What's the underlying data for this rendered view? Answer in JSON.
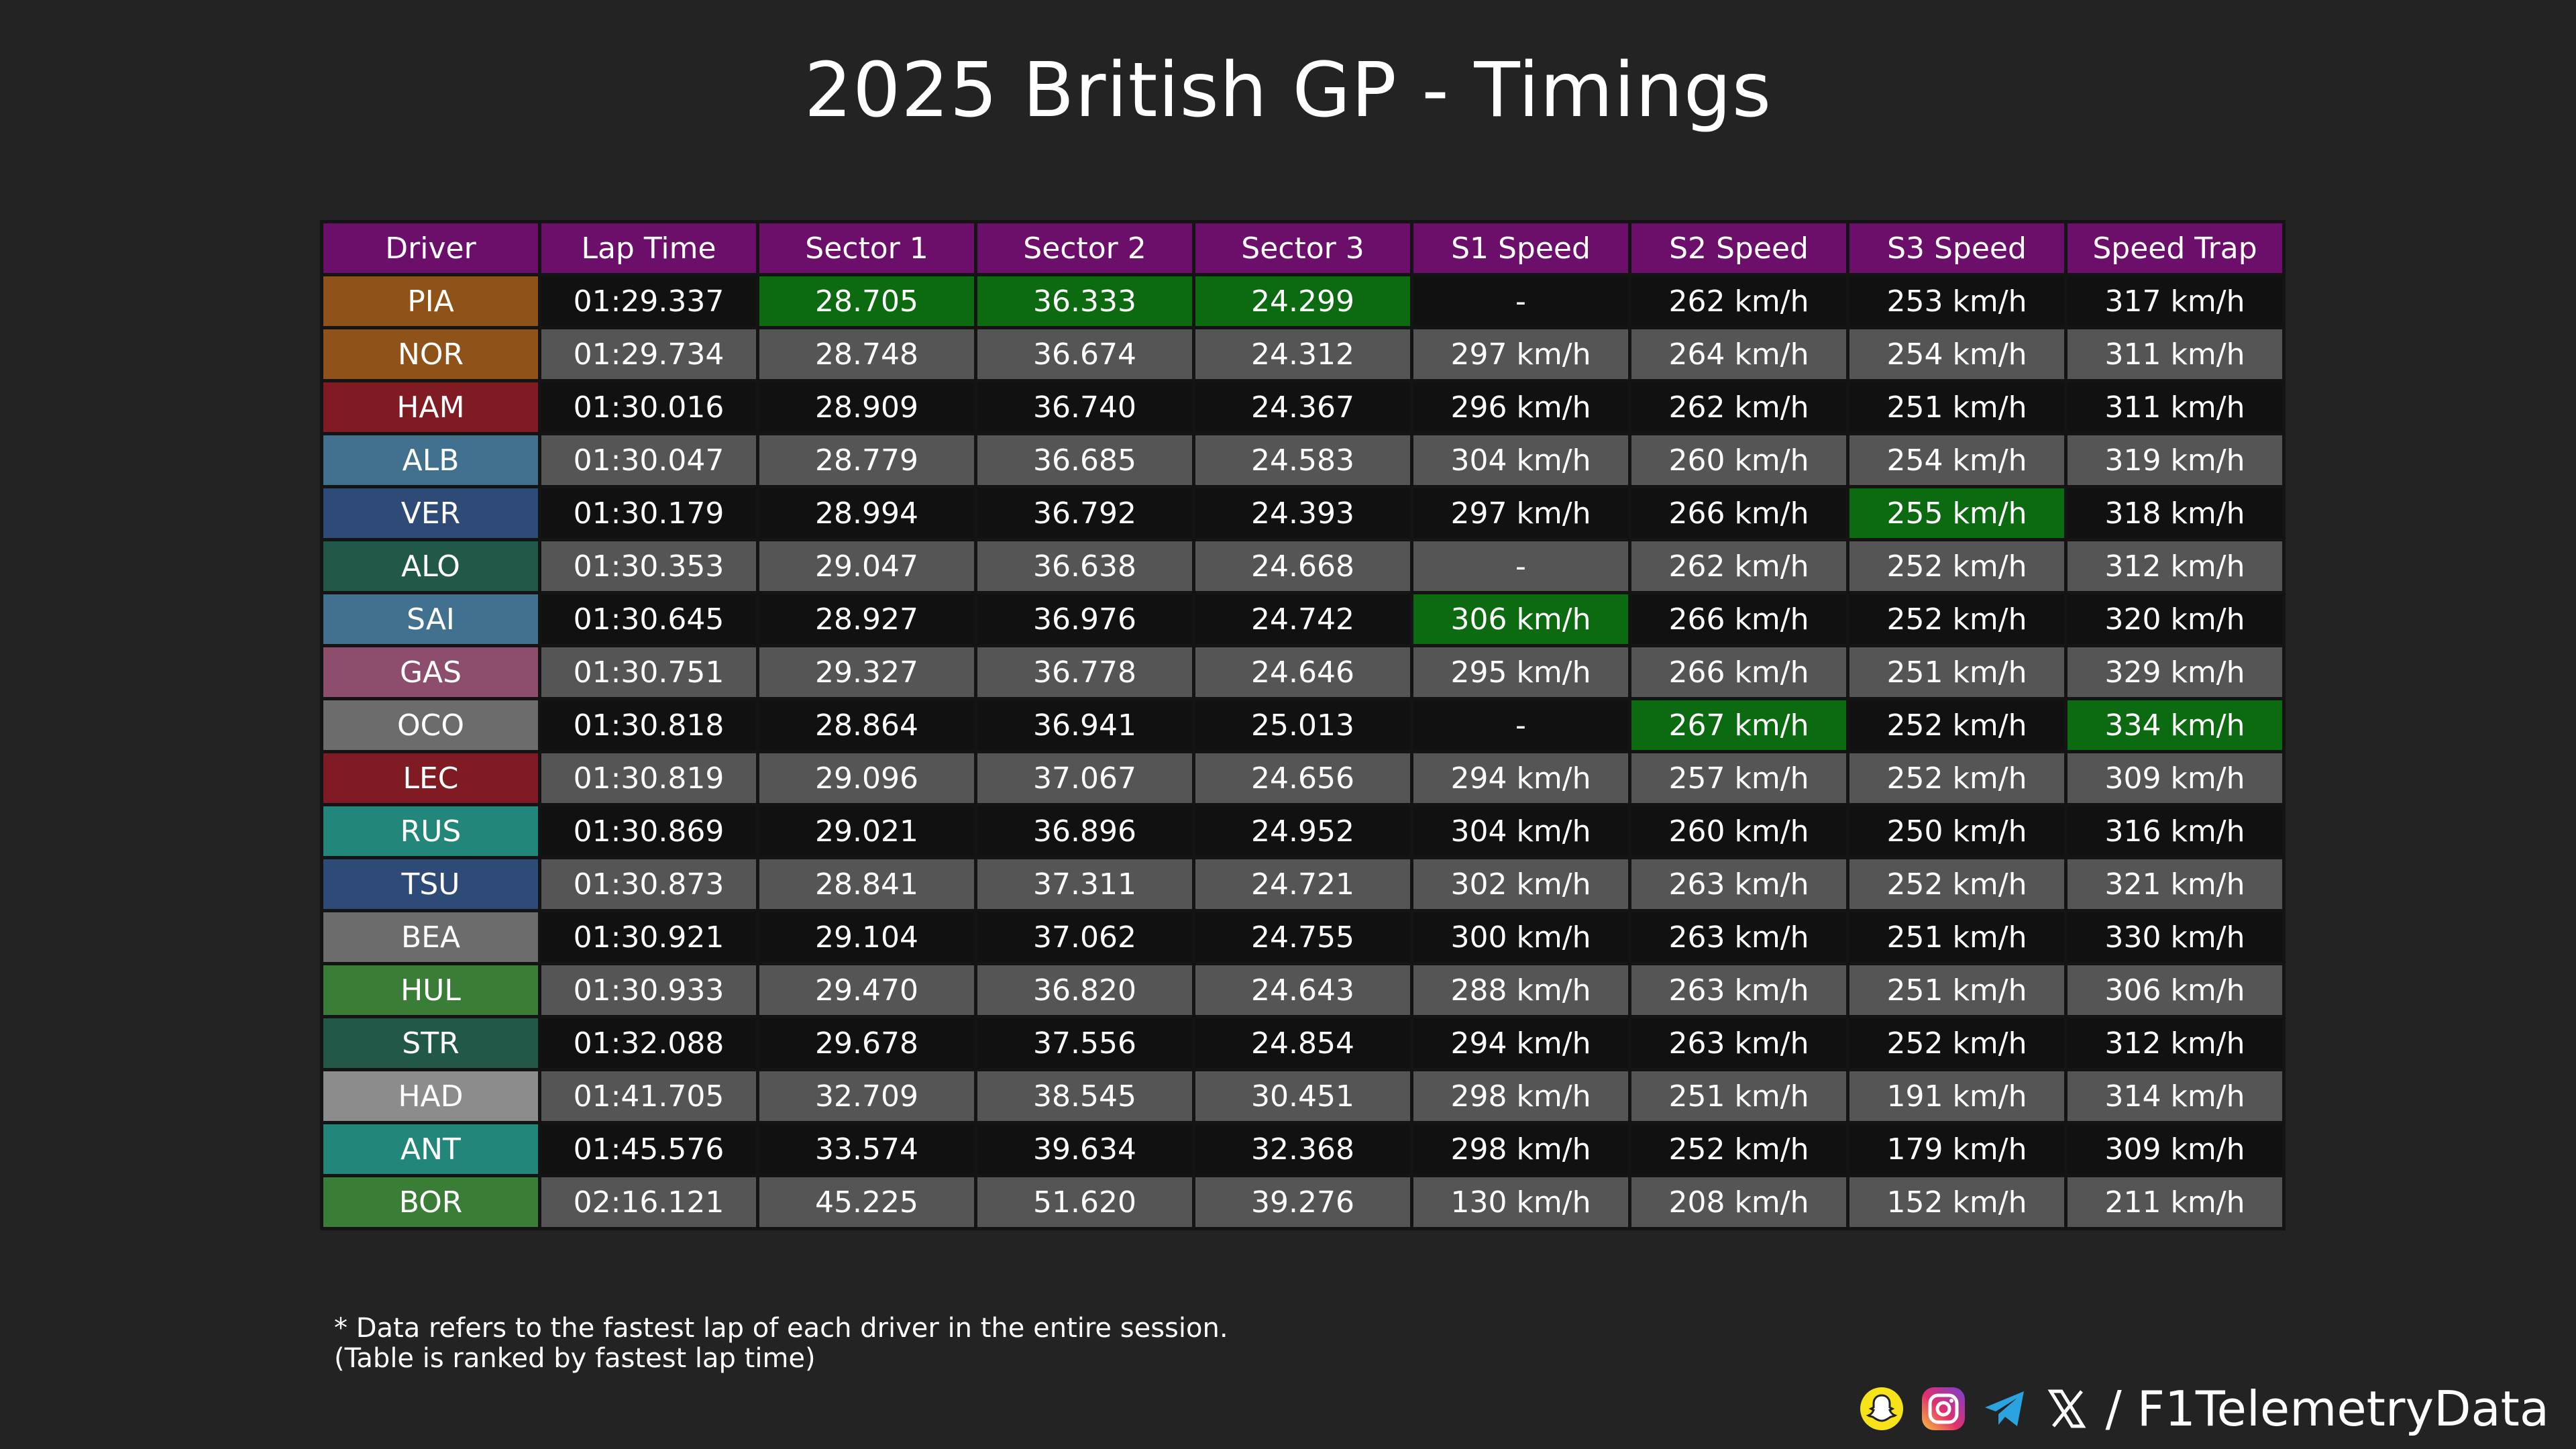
{
  "title": "2025 British GP - Timings",
  "watermark": "@F1TelemetryData",
  "columns": [
    "Driver",
    "Lap Time",
    "Sector 1",
    "Sector 2",
    "Sector 3",
    "S1 Speed",
    "S2 Speed",
    "S3 Speed",
    "Speed Trap"
  ],
  "colors": {
    "header": "#6b0f6b",
    "best": "#0c6b10",
    "row_dark": "#111111",
    "row_light": "#555555"
  },
  "rows": [
    {
      "driver": "PIA",
      "team_color": "#8f5218",
      "values": [
        "01:29.337",
        "28.705",
        "36.333",
        "24.299",
        "-",
        "262 km/h",
        "253 km/h",
        "317 km/h"
      ],
      "best": [
        1,
        2,
        3
      ]
    },
    {
      "driver": "NOR",
      "team_color": "#8f5218",
      "values": [
        "01:29.734",
        "28.748",
        "36.674",
        "24.312",
        "297 km/h",
        "264 km/h",
        "254 km/h",
        "311 km/h"
      ],
      "best": []
    },
    {
      "driver": "HAM",
      "team_color": "#801b24",
      "values": [
        "01:30.016",
        "28.909",
        "36.740",
        "24.367",
        "296 km/h",
        "262 km/h",
        "251 km/h",
        "311 km/h"
      ],
      "best": []
    },
    {
      "driver": "ALB",
      "team_color": "#42708f",
      "values": [
        "01:30.047",
        "28.779",
        "36.685",
        "24.583",
        "304 km/h",
        "260 km/h",
        "254 km/h",
        "319 km/h"
      ],
      "best": []
    },
    {
      "driver": "VER",
      "team_color": "#2e4a77",
      "values": [
        "01:30.179",
        "28.994",
        "36.792",
        "24.393",
        "297 km/h",
        "266 km/h",
        "255 km/h",
        "318 km/h"
      ],
      "best": [
        6
      ]
    },
    {
      "driver": "ALO",
      "team_color": "#215848",
      "values": [
        "01:30.353",
        "29.047",
        "36.638",
        "24.668",
        "-",
        "262 km/h",
        "252 km/h",
        "312 km/h"
      ],
      "best": []
    },
    {
      "driver": "SAI",
      "team_color": "#42708f",
      "values": [
        "01:30.645",
        "28.927",
        "36.976",
        "24.742",
        "306 km/h",
        "266 km/h",
        "252 km/h",
        "320 km/h"
      ],
      "best": [
        4
      ]
    },
    {
      "driver": "GAS",
      "team_color": "#8d4d6d",
      "values": [
        "01:30.751",
        "29.327",
        "36.778",
        "24.646",
        "295 km/h",
        "266 km/h",
        "251 km/h",
        "329 km/h"
      ],
      "best": []
    },
    {
      "driver": "OCO",
      "team_color": "#6c6c6c",
      "values": [
        "01:30.818",
        "28.864",
        "36.941",
        "25.013",
        "-",
        "267 km/h",
        "252 km/h",
        "334 km/h"
      ],
      "best": [
        5,
        7
      ]
    },
    {
      "driver": "LEC",
      "team_color": "#801b24",
      "values": [
        "01:30.819",
        "29.096",
        "37.067",
        "24.656",
        "294 km/h",
        "257 km/h",
        "252 km/h",
        "309 km/h"
      ],
      "best": []
    },
    {
      "driver": "RUS",
      "team_color": "#23867a",
      "values": [
        "01:30.869",
        "29.021",
        "36.896",
        "24.952",
        "304 km/h",
        "260 km/h",
        "250 km/h",
        "316 km/h"
      ],
      "best": []
    },
    {
      "driver": "TSU",
      "team_color": "#2e4a77",
      "values": [
        "01:30.873",
        "28.841",
        "37.311",
        "24.721",
        "302 km/h",
        "263 km/h",
        "252 km/h",
        "321 km/h"
      ],
      "best": []
    },
    {
      "driver": "BEA",
      "team_color": "#6c6c6c",
      "values": [
        "01:30.921",
        "29.104",
        "37.062",
        "24.755",
        "300 km/h",
        "263 km/h",
        "251 km/h",
        "330 km/h"
      ],
      "best": []
    },
    {
      "driver": "HUL",
      "team_color": "#3a7d36",
      "values": [
        "01:30.933",
        "29.470",
        "36.820",
        "24.643",
        "288 km/h",
        "263 km/h",
        "251 km/h",
        "306 km/h"
      ],
      "best": []
    },
    {
      "driver": "STR",
      "team_color": "#215848",
      "values": [
        "01:32.088",
        "29.678",
        "37.556",
        "24.854",
        "294 km/h",
        "263 km/h",
        "252 km/h",
        "312 km/h"
      ],
      "best": []
    },
    {
      "driver": "HAD",
      "team_color": "#8c8c8c",
      "values": [
        "01:41.705",
        "32.709",
        "38.545",
        "30.451",
        "298 km/h",
        "251 km/h",
        "191 km/h",
        "314 km/h"
      ],
      "best": []
    },
    {
      "driver": "ANT",
      "team_color": "#23867a",
      "values": [
        "01:45.576",
        "33.574",
        "39.634",
        "32.368",
        "298 km/h",
        "252 km/h",
        "179 km/h",
        "309 km/h"
      ],
      "best": []
    },
    {
      "driver": "BOR",
      "team_color": "#3a7d36",
      "values": [
        "02:16.121",
        "45.225",
        "51.620",
        "39.276",
        "130 km/h",
        "208 km/h",
        "152 km/h",
        "211 km/h"
      ],
      "best": []
    }
  ],
  "footnote": {
    "line1": "* Data refers to the fastest lap of each driver in the entire session.",
    "line2": "(Table is ranked by fastest lap time)"
  },
  "footer": {
    "handle": "/ F1TelemetryData",
    "icons": [
      "snapchat-icon",
      "instagram-icon",
      "telegram-icon",
      "x-icon"
    ]
  }
}
